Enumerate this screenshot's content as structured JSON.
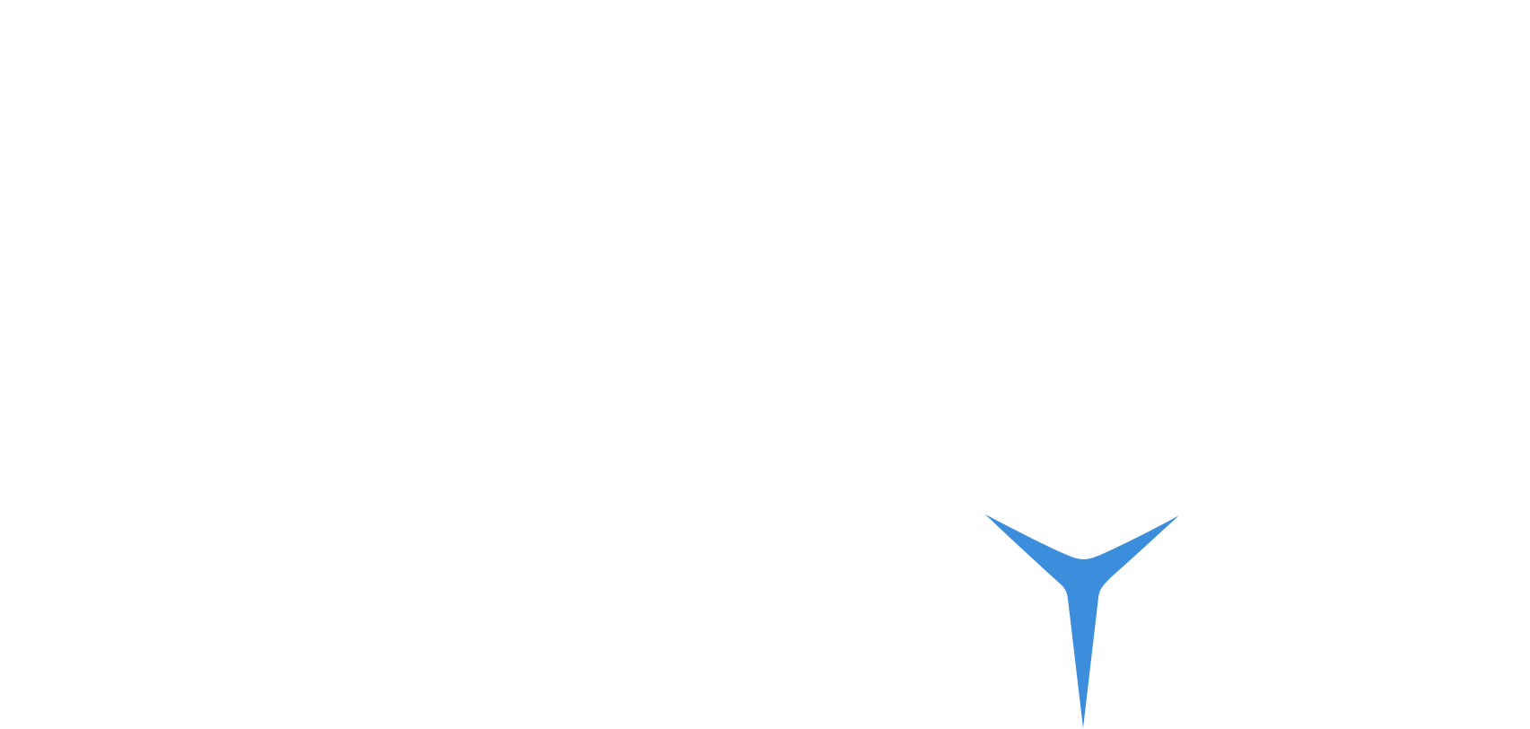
{
  "canvas": {
    "background_color": "#ffffff"
  },
  "shape": {
    "icon": "tri-blade-star-icon",
    "color": "#3d8ddd"
  }
}
